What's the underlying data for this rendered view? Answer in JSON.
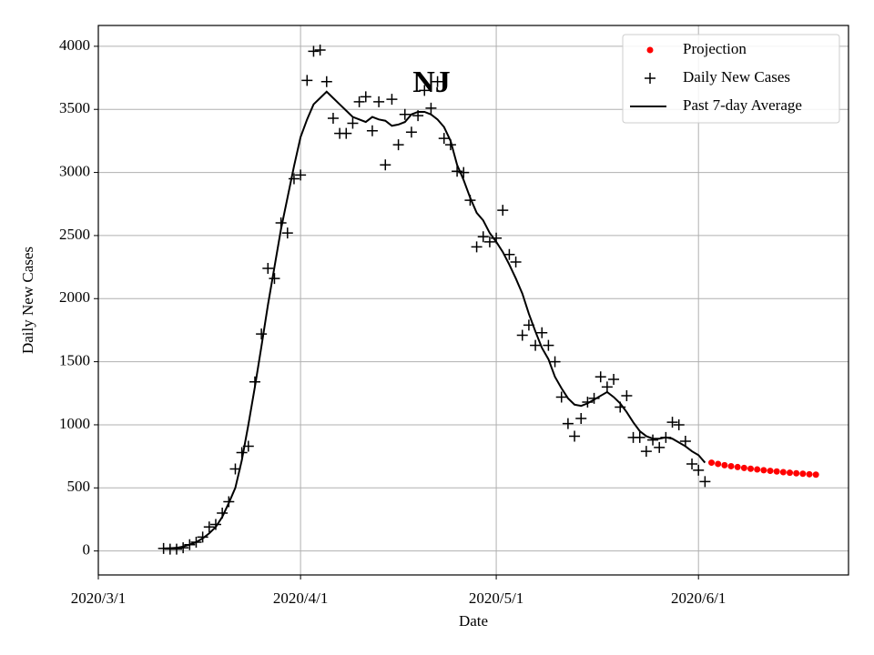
{
  "chart_data": {
    "type": "line",
    "annotation": "NJ",
    "xlabel": "Date",
    "ylabel": "Daily New Cases",
    "xlim": [
      "2020/3/1",
      "2020/6/24"
    ],
    "xticks": [
      "2020/3/1",
      "2020/4/1",
      "2020/5/1",
      "2020/6/1"
    ],
    "ylim": [
      -190,
      4165
    ],
    "yticks": [
      0,
      500,
      1000,
      1500,
      2000,
      2500,
      3000,
      3500,
      4000
    ],
    "grid": true,
    "legend": "upper right",
    "series": [
      {
        "name": "Projection",
        "color": "#ff0000",
        "style": "dots",
        "x": [
          "2020/6/3",
          "2020/6/4",
          "2020/6/5",
          "2020/6/6",
          "2020/6/7",
          "2020/6/8",
          "2020/6/9",
          "2020/6/10",
          "2020/6/11",
          "2020/6/12",
          "2020/6/13",
          "2020/6/14",
          "2020/6/15",
          "2020/6/16",
          "2020/6/17",
          "2020/6/18",
          "2020/6/19"
        ],
        "values": [
          700,
          690,
          680,
          672,
          665,
          658,
          652,
          646,
          640,
          635,
          630,
          625,
          620,
          616,
          612,
          608,
          605
        ]
      },
      {
        "name": "Daily New Cases",
        "color": "#000000",
        "style": "plus",
        "x": [
          "2020/3/11",
          "2020/3/12",
          "2020/3/13",
          "2020/3/14",
          "2020/3/15",
          "2020/3/16",
          "2020/3/17",
          "2020/3/18",
          "2020/3/19",
          "2020/3/20",
          "2020/3/21",
          "2020/3/22",
          "2020/3/23",
          "2020/3/24",
          "2020/3/25",
          "2020/3/26",
          "2020/3/27",
          "2020/3/28",
          "2020/3/29",
          "2020/3/30",
          "2020/3/31",
          "2020/4/1",
          "2020/4/2",
          "2020/4/3",
          "2020/4/4",
          "2020/4/5",
          "2020/4/6",
          "2020/4/7",
          "2020/4/8",
          "2020/4/9",
          "2020/4/10",
          "2020/4/11",
          "2020/4/12",
          "2020/4/13",
          "2020/4/14",
          "2020/4/15",
          "2020/4/16",
          "2020/4/17",
          "2020/4/18",
          "2020/4/19",
          "2020/4/20",
          "2020/4/21",
          "2020/4/22",
          "2020/4/23",
          "2020/4/24",
          "2020/4/25",
          "2020/4/26",
          "2020/4/27",
          "2020/4/28",
          "2020/4/29",
          "2020/4/30",
          "2020/5/1",
          "2020/5/2",
          "2020/5/3",
          "2020/5/4",
          "2020/5/5",
          "2020/5/6",
          "2020/5/7",
          "2020/5/8",
          "2020/5/9",
          "2020/5/10",
          "2020/5/11",
          "2020/5/12",
          "2020/5/13",
          "2020/5/14",
          "2020/5/15",
          "2020/5/16",
          "2020/5/17",
          "2020/5/18",
          "2020/5/19",
          "2020/5/20",
          "2020/5/21",
          "2020/5/22",
          "2020/5/23",
          "2020/5/24",
          "2020/5/25",
          "2020/5/26",
          "2020/5/27",
          "2020/5/28",
          "2020/5/29",
          "2020/5/30",
          "2020/5/31",
          "2020/6/1",
          "2020/6/2"
        ],
        "values": [
          20,
          15,
          15,
          25,
          50,
          70,
          110,
          190,
          210,
          300,
          390,
          650,
          780,
          830,
          1340,
          1720,
          2240,
          2160,
          2600,
          2520,
          2950,
          2980,
          3730,
          3960,
          3970,
          3720,
          3430,
          3310,
          3310,
          3390,
          3560,
          3600,
          3330,
          3560,
          3060,
          3580,
          3220,
          3460,
          3320,
          3450,
          3650,
          3510,
          3720,
          3270,
          3220,
          3010,
          3000,
          2780,
          2410,
          2490,
          2450,
          2480,
          2700,
          2350,
          2290,
          1710,
          1790,
          1630,
          1730,
          1630,
          1500,
          1220,
          1010,
          910,
          1050,
          1180,
          1210,
          1380,
          1300,
          1360,
          1140,
          1230,
          900,
          900,
          790,
          880,
          820,
          900,
          1020,
          1000,
          870,
          690,
          640,
          550
        ]
      },
      {
        "name": "Past 7-day Average",
        "color": "#000000",
        "style": "line",
        "x": [
          "2020/3/11",
          "2020/3/12",
          "2020/3/13",
          "2020/3/14",
          "2020/3/15",
          "2020/3/16",
          "2020/3/17",
          "2020/3/18",
          "2020/3/19",
          "2020/3/20",
          "2020/3/21",
          "2020/3/22",
          "2020/3/23",
          "2020/3/24",
          "2020/3/25",
          "2020/3/26",
          "2020/3/27",
          "2020/3/28",
          "2020/3/29",
          "2020/3/30",
          "2020/3/31",
          "2020/4/1",
          "2020/4/2",
          "2020/4/3",
          "2020/4/4",
          "2020/4/5",
          "2020/4/6",
          "2020/4/7",
          "2020/4/8",
          "2020/4/9",
          "2020/4/10",
          "2020/4/11",
          "2020/4/12",
          "2020/4/13",
          "2020/4/14",
          "2020/4/15",
          "2020/4/16",
          "2020/4/17",
          "2020/4/18",
          "2020/4/19",
          "2020/4/20",
          "2020/4/21",
          "2020/4/22",
          "2020/4/23",
          "2020/4/24",
          "2020/4/25",
          "2020/4/26",
          "2020/4/27",
          "2020/4/28",
          "2020/4/29",
          "2020/4/30",
          "2020/5/1",
          "2020/5/2",
          "2020/5/3",
          "2020/5/4",
          "2020/5/5",
          "2020/5/6",
          "2020/5/7",
          "2020/5/8",
          "2020/5/9",
          "2020/5/10",
          "2020/5/11",
          "2020/5/12",
          "2020/5/13",
          "2020/5/14",
          "2020/5/15",
          "2020/5/16",
          "2020/5/17",
          "2020/5/18",
          "2020/5/19",
          "2020/5/20",
          "2020/5/21",
          "2020/5/22",
          "2020/5/23",
          "2020/5/24",
          "2020/5/25",
          "2020/5/26",
          "2020/5/27",
          "2020/5/28",
          "2020/5/29",
          "2020/5/30",
          "2020/5/31",
          "2020/6/1",
          "2020/6/2"
        ],
        "values": [
          20,
          22,
          25,
          35,
          50,
          70,
          100,
          140,
          190,
          270,
          380,
          500,
          720,
          1000,
          1300,
          1620,
          1950,
          2250,
          2550,
          2800,
          3050,
          3280,
          3420,
          3540,
          3590,
          3640,
          3590,
          3540,
          3490,
          3440,
          3420,
          3400,
          3440,
          3420,
          3410,
          3370,
          3380,
          3400,
          3460,
          3480,
          3480,
          3460,
          3420,
          3360,
          3250,
          3060,
          2940,
          2800,
          2680,
          2620,
          2520,
          2450,
          2370,
          2270,
          2160,
          2040,
          1880,
          1740,
          1610,
          1520,
          1380,
          1290,
          1210,
          1160,
          1150,
          1170,
          1200,
          1230,
          1260,
          1220,
          1170,
          1100,
          1020,
          950,
          910,
          890,
          890,
          900,
          890,
          860,
          830,
          790,
          760,
          700
        ]
      }
    ]
  }
}
